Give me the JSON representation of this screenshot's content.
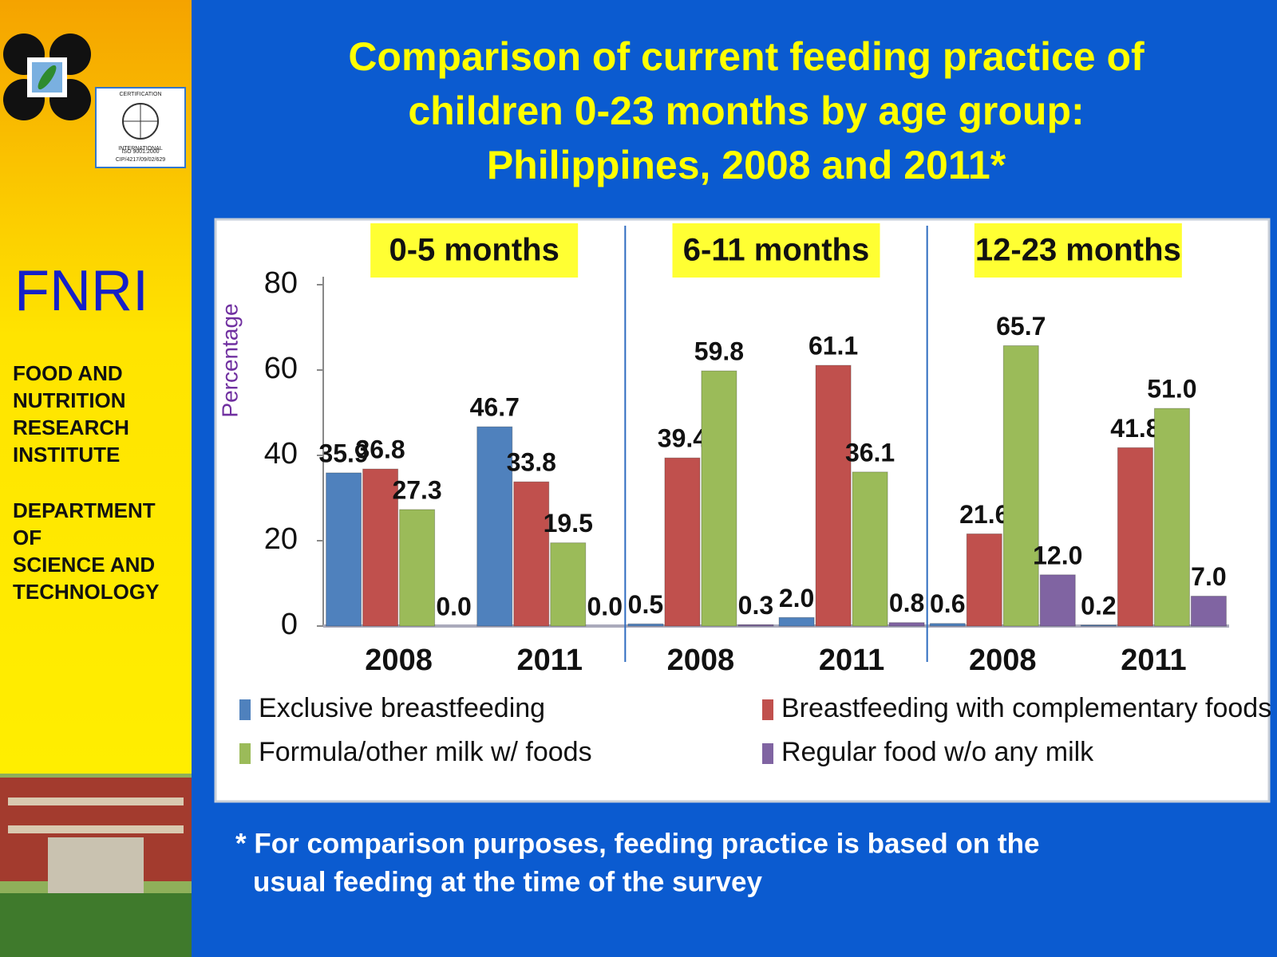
{
  "sidebar": {
    "acronym": "FNRI",
    "institute": [
      "FOOD AND",
      "NUTRITION",
      "RESEARCH",
      "INSTITUTE"
    ],
    "department": [
      "DEPARTMENT",
      "OF",
      "SCIENCE AND",
      "TECHNOLOGY"
    ],
    "certificate": [
      "CERTIFICATION",
      "INTERNATIONAL",
      "ISO 9001:2000",
      "CIP/4217/09/02/629"
    ]
  },
  "chart_data": {
    "type": "bar",
    "title": [
      "Comparison of current feeding practice of",
      "children 0-23 months by age group:",
      "Philippines, 2008 and 2011*"
    ],
    "y_label": "Percentage",
    "groups": [
      "0-5 months",
      "6-11 months",
      "12-23 months"
    ],
    "categories": [
      "2008",
      "2011",
      "2008",
      "2011",
      "2008",
      "2011"
    ],
    "series": [
      {
        "name": "Exclusive breastfeeding",
        "color": "#4f81bd",
        "values": [
          35.9,
          46.7,
          0.5,
          2.0,
          0.6,
          0.2
        ],
        "value_labels": [
          "35.9",
          "46.7",
          "0.5",
          "2.0",
          "0.6",
          "0.2"
        ]
      },
      {
        "name": "Breastfeeding with complementary foods",
        "color": "#c0504d",
        "values": [
          36.8,
          33.8,
          39.4,
          61.1,
          21.6,
          41.8
        ],
        "value_labels": [
          "36.8",
          "33.8",
          "39.4",
          "61.1",
          "21.6",
          "41.8"
        ]
      },
      {
        "name": "Formula/other milk w/ foods",
        "color": "#9bbb59",
        "values": [
          27.3,
          19.5,
          59.8,
          36.1,
          65.7,
          51.0
        ],
        "value_labels": [
          "27.3",
          "19.5",
          "59.8",
          "36.1",
          "65.7",
          "51.0"
        ]
      },
      {
        "name": "Regular food w/o any milk",
        "color": "#8064a2",
        "values": [
          0.0,
          0.0,
          0.3,
          0.8,
          12.0,
          7.0
        ],
        "value_labels": [
          "0.0",
          "0.0",
          "0.3",
          "0.8",
          "12.0",
          "7.0"
        ]
      }
    ],
    "ylim": [
      0,
      80
    ],
    "yticks": [
      0,
      20,
      40,
      60,
      80
    ]
  },
  "footnote": [
    "* For comparison purposes, feeding practice is based on the",
    "usual feeding at the time of the survey"
  ]
}
